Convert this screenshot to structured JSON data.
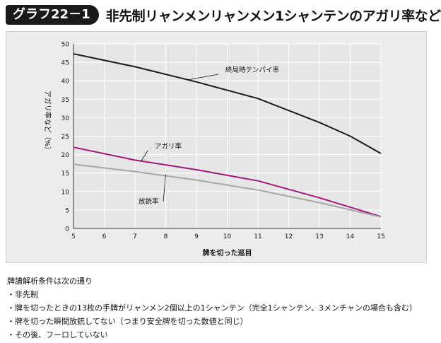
{
  "header": {
    "badge": "グラフ22－1",
    "title": "非先制リャンメンリャンメン1シャンテンのアガリ率など"
  },
  "chart_data": {
    "type": "line",
    "title": "",
    "xlabel": "牌を切った巡目",
    "ylabel": "アガリ率など（%）",
    "xlim": [
      5,
      15
    ],
    "ylim": [
      0,
      50
    ],
    "x_ticks": [
      "5",
      "6",
      "7",
      "8",
      "9",
      "10",
      "11",
      "12",
      "13",
      "14",
      "15"
    ],
    "y_ticks": [
      "0",
      "5",
      "10",
      "15",
      "20",
      "25",
      "30",
      "35",
      "40",
      "45",
      "50"
    ],
    "grid": true,
    "series": [
      {
        "name": "終局時テンパイ率",
        "color": "#1a1a1a",
        "x": [
          5,
          7,
          9,
          11,
          13,
          14,
          15
        ],
        "values": [
          47.3,
          43.8,
          39.7,
          35.2,
          28.7,
          25.0,
          20.3
        ]
      },
      {
        "name": "アガリ率",
        "color": "#a3177a",
        "x": [
          5,
          7,
          9,
          11,
          13,
          15
        ],
        "values": [
          22.0,
          18.5,
          15.9,
          12.9,
          8.3,
          3.2
        ]
      },
      {
        "name": "放銃率",
        "color": "#a6a6a6",
        "x": [
          5,
          7,
          9,
          11,
          13,
          15
        ],
        "values": [
          17.4,
          15.4,
          13.1,
          10.4,
          7.0,
          3.1
        ]
      }
    ]
  },
  "notes": {
    "heading": "牌譜解析条件は次の通り",
    "items": [
      "・非先制",
      "・牌を切ったときの13枚の手牌がリャンメン2個以上の1シャンテン（完全1シャンテン、3メンチャンの場合も含む）",
      "・牌を切った瞬間放銃してない（つまり安全牌を切った数値と同じ）",
      "・その後、フーロしていない"
    ]
  },
  "colors": {
    "panel_bg": "#ececec",
    "grid": "#ffffff",
    "badge_bg": "#1a1a1a"
  }
}
